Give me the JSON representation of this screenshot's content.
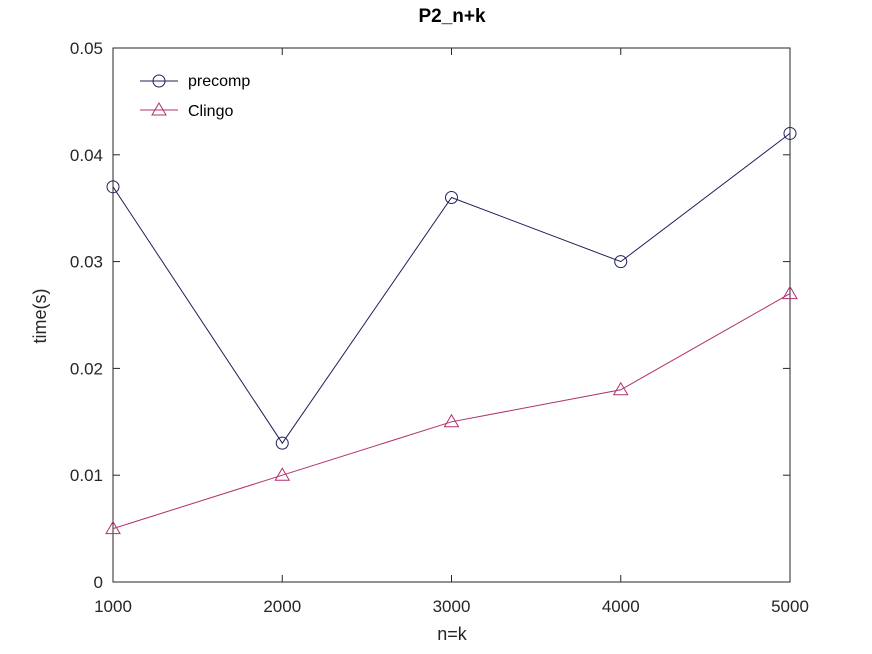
{
  "chart_data": {
    "type": "line",
    "title": "P2_n+k",
    "xlabel": "n=k",
    "ylabel": "time(s)",
    "x": [
      1000,
      2000,
      3000,
      4000,
      5000
    ],
    "xlim": [
      1000,
      5000
    ],
    "ylim": [
      0,
      0.05
    ],
    "xticks": [
      1000,
      2000,
      3000,
      4000,
      5000
    ],
    "xtick_labels": [
      "1000",
      "2000",
      "3000",
      "4000",
      "5000"
    ],
    "yticks": [
      0,
      0.01,
      0.02,
      0.03,
      0.04,
      0.05
    ],
    "ytick_labels": [
      "0",
      "0.01",
      "0.02",
      "0.03",
      "0.04",
      "0.05"
    ],
    "grid": false,
    "legend_position": "top-left",
    "series": [
      {
        "name": "precomp",
        "marker": "circle",
        "color": "#1f1f5a",
        "values": [
          0.037,
          0.013,
          0.036,
          0.03,
          0.042
        ]
      },
      {
        "name": "Clingo",
        "marker": "triangle",
        "color": "#b0306f",
        "values": [
          0.005,
          0.01,
          0.015,
          0.018,
          0.027
        ]
      }
    ]
  }
}
